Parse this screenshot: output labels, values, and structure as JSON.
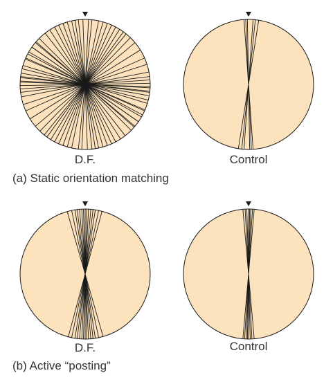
{
  "colors": {
    "disc_fill": "#fde3bd",
    "disc_stroke": "#1a1a1a",
    "line": "#1a1a1a",
    "text": "#333333"
  },
  "panels": [
    {
      "id": "a",
      "caption": "(a) Static orientation matching",
      "discs": [
        {
          "label": "D.F.",
          "marker": "down-triangle-icon",
          "line_angles_deg": [
            -88,
            -84,
            -80,
            -73,
            -66,
            -60,
            -55,
            -50,
            -45,
            -38,
            -33,
            -28,
            -24,
            -20,
            -16,
            -12,
            -9,
            -6,
            -2,
            3,
            6,
            12,
            16,
            20,
            24,
            28,
            32,
            36,
            39,
            44,
            50,
            58,
            66,
            72,
            79,
            83,
            86,
            89,
            93,
            97,
            104,
            113,
            118,
            125,
            131
          ]
        },
        {
          "label": "Control",
          "marker": "down-triangle-icon",
          "line_angles_deg": [
            -4,
            -2.5,
            -1,
            4,
            6,
            9
          ]
        }
      ]
    },
    {
      "id": "b",
      "caption": "(b) Active “posting”",
      "discs": [
        {
          "label": "D.F.",
          "marker": "down-triangle-icon",
          "line_angles_deg": [
            -16,
            -12,
            -9,
            -7,
            -5,
            -3,
            -1.5,
            0,
            1.5,
            3,
            5,
            7,
            9,
            12,
            15
          ]
        },
        {
          "label": "Control",
          "marker": "down-triangle-icon",
          "line_angles_deg": [
            -5,
            -3,
            -1.5,
            0,
            1,
            2,
            3.5,
            5
          ]
        }
      ]
    }
  ]
}
